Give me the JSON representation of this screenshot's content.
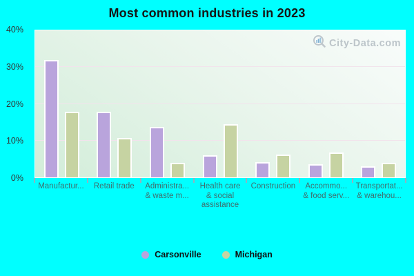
{
  "title": "Most common industries in 2023",
  "watermark": {
    "text": "City-Data.com"
  },
  "colors": {
    "background": "#00ffff",
    "carsonville_bar": "#b9a4dc",
    "michigan_bar": "#c6d3a2",
    "bar_border": "#ffffff",
    "gridline": "#f2e3ec",
    "xlabel_text": "#3f6f6f",
    "ylabel_text": "#333333",
    "tick": "#8fb3c0",
    "watermark_text": "#b3bcc2"
  },
  "chart_data": {
    "type": "bar",
    "title": "Most common industries in 2023",
    "categories": [
      "Manufactur...",
      "Retail trade",
      "Administra... & waste m...",
      "Health care & social assistance",
      "Construction",
      "Accommo... & food serv...",
      "Transportat... & warehou..."
    ],
    "categories_display": [
      [
        "Manufactur..."
      ],
      [
        "Retail trade"
      ],
      [
        "Administra...",
        "& waste m..."
      ],
      [
        "Health care",
        "& social",
        "assistance"
      ],
      [
        "Construction"
      ],
      [
        "Accommo...",
        "& food serv..."
      ],
      [
        "Transportat...",
        "& warehou..."
      ]
    ],
    "series": [
      {
        "name": "Carsonville",
        "color": "#b9a4dc",
        "values": [
          31.6,
          17.5,
          13.4,
          5.6,
          3.7,
          3.2,
          2.6
        ]
      },
      {
        "name": "Michigan",
        "color": "#c6d3a2",
        "values": [
          17.5,
          10.4,
          3.5,
          14.0,
          5.8,
          6.3,
          3.5
        ]
      }
    ],
    "xlabel": "",
    "ylabel": "",
    "ylim": [
      0,
      40
    ],
    "yticks": [
      "0%",
      "10%",
      "20%",
      "30%",
      "40%"
    ],
    "grid": "horizontal",
    "legend_position": "bottom"
  },
  "legend": {
    "items": [
      {
        "label": "Carsonville",
        "color": "#b9a4dc"
      },
      {
        "label": "Michigan",
        "color": "#c6d3a2"
      }
    ]
  }
}
